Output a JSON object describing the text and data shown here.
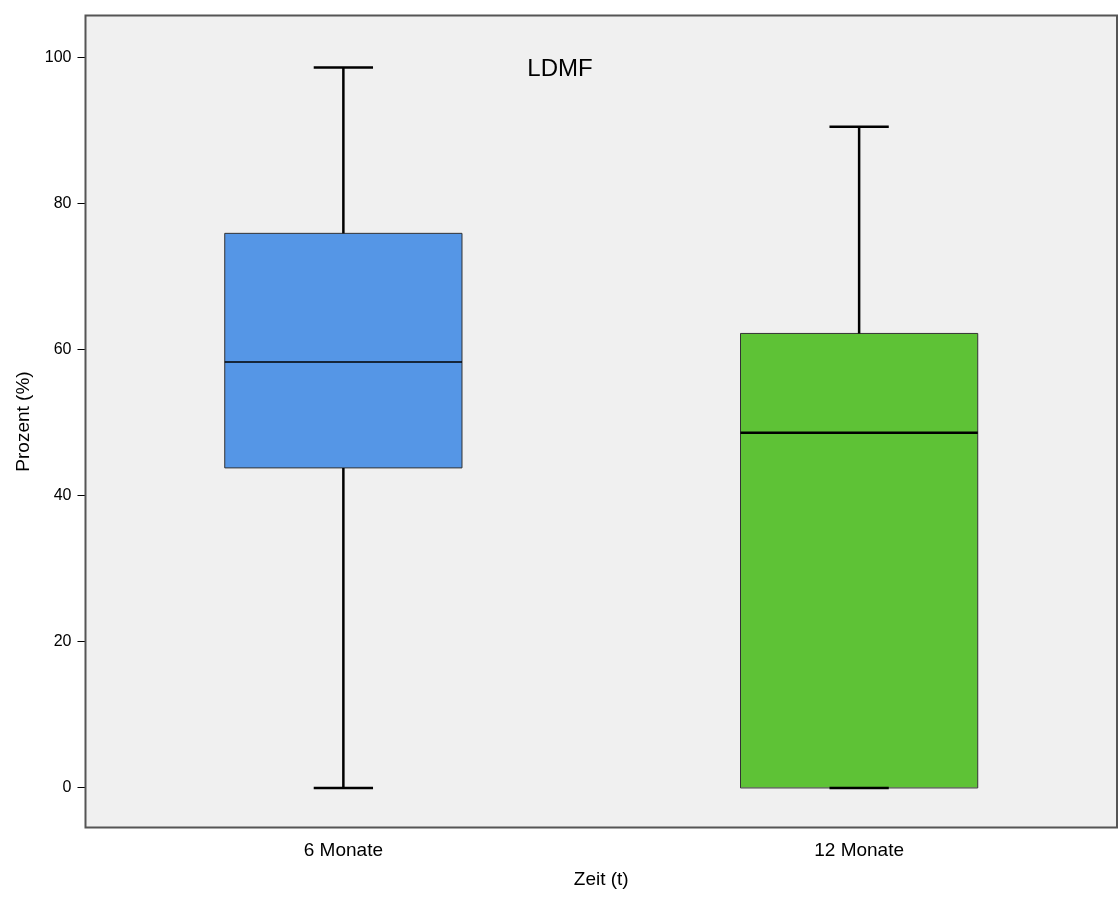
{
  "chart_data": {
    "type": "box",
    "title": "LDMF",
    "xlabel": "Zeit (t)",
    "ylabel": "Prozent (%)",
    "categories": [
      "6 Monate",
      "12 Monate"
    ],
    "colors": [
      "#5596e6",
      "#5ec236"
    ],
    "boxes": [
      {
        "low": 0,
        "q1": 43.8,
        "median": 58.3,
        "q3": 75.9,
        "high": 98.6
      },
      {
        "low": 0,
        "q1": 0,
        "median": 48.6,
        "q3": 62.2,
        "high": 90.5
      }
    ],
    "ylim": [
      -5.4,
      105.7
    ],
    "yticks": [
      0,
      20,
      40,
      60,
      80,
      100
    ],
    "grid": false
  }
}
